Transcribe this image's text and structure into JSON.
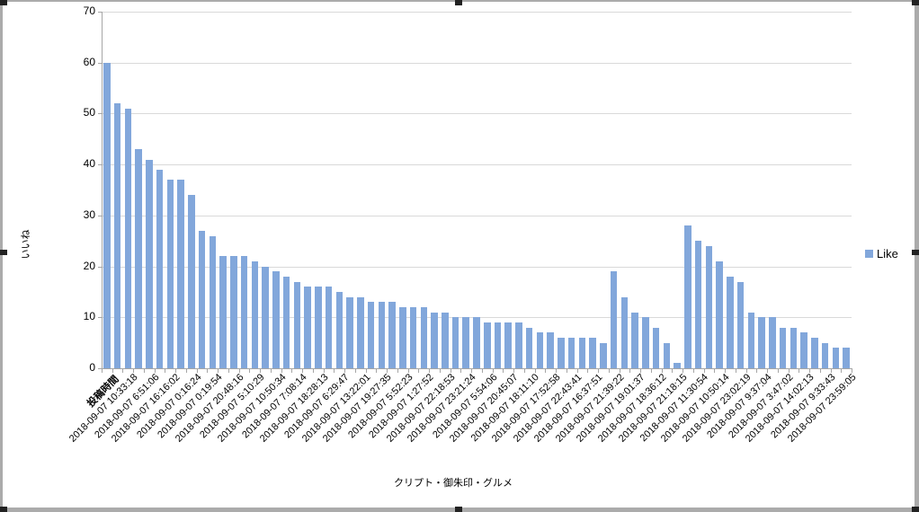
{
  "window": {
    "type": "embedded-chart-object",
    "frame_color": "#ABABAB",
    "handle_color": "#222222",
    "background": "#FFFFFF"
  },
  "chart_data": {
    "type": "bar",
    "title": "",
    "ylabel": "いいね",
    "xlabel": "クリプト・御朱印・グルメ",
    "ylim": [
      0,
      70
    ],
    "ytick_step": 10,
    "y_tick_labels": [
      "0",
      "10",
      "20",
      "30",
      "40",
      "50",
      "60",
      "70"
    ],
    "grid": true,
    "legend_position": "right",
    "bar_color": "#82A7DB",
    "gridline_color": "#D9D9D9",
    "axis_color": "#A6A6A6",
    "x_label_interval": 2,
    "first_x_label_bold": true,
    "x_tick_labels": [
      "投稿時間",
      "2018-09-07 10:33:18",
      "2018-09-07 6:51:06",
      "2018-09-07 16:16:02",
      "2018-09-07 0:16:24",
      "2018-09-07 0:19:54",
      "2018-09-07 20:48:16",
      "2018-09-07 5:10:29",
      "2018-09-07 10:50:34",
      "2018-09-07 7:08:14",
      "2018-09-07 18:28:13",
      "2018-09-07 6:29:47",
      "2018-09-07 13:22:01",
      "2018-09-07 19:27:35",
      "2018-09-07 5:52:23",
      "2018-09-07 1:27:52",
      "2018-09-07 22:18:53",
      "2018-09-07 23:21:24",
      "2018-09-07 5:54:06",
      "2018-09-07 20:45:07",
      "2018-09-07 18:11:10",
      "2018-09-07 17:52:58",
      "2018-09-07 22:43:41",
      "2018-09-07 16:37:51",
      "2018-09-07 21:39:22",
      "2018-09-07 19:01:37",
      "2018-09-07 18:36:12",
      "2018-09-07 21:18:15",
      "2018-09-07 11:30:54",
      "2018-09-07 10:50:14",
      "2018-09-07 23:02:19",
      "2018-09-07 9:37:04",
      "2018-09-07 3:47:02",
      "2018-09-07 14:02:13",
      "2018-09-07 9:33:43",
      "2018-09-07 23:59:05"
    ],
    "series": [
      {
        "name": "Like",
        "values": [
          60,
          52,
          51,
          43,
          41,
          39,
          37,
          37,
          34,
          27,
          26,
          22,
          22,
          22,
          21,
          20,
          19,
          18,
          17,
          16,
          16,
          16,
          15,
          14,
          14,
          13,
          13,
          13,
          12,
          12,
          12,
          11,
          11,
          10,
          10,
          10,
          9,
          9,
          9,
          9,
          8,
          7,
          7,
          6,
          6,
          6,
          6,
          5,
          19,
          14,
          11,
          10,
          8,
          5,
          1,
          28,
          25,
          24,
          21,
          18,
          17,
          11,
          10,
          10,
          8,
          8,
          7,
          6,
          5,
          4,
          4
        ]
      }
    ]
  }
}
